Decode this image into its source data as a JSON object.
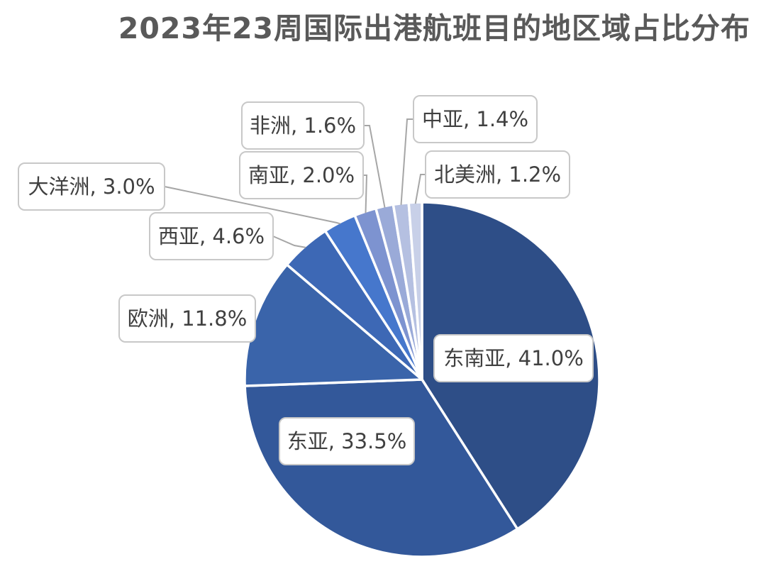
{
  "chart_data": {
    "type": "pie",
    "title": "2023年23周国际出港航班目的地区域占比分布",
    "categories": [
      "东南亚",
      "东亚",
      "欧洲",
      "西亚",
      "大洋洲",
      "南亚",
      "非洲",
      "中亚",
      "北美洲"
    ],
    "values": [
      41.0,
      33.5,
      11.8,
      4.6,
      3.0,
      2.0,
      1.6,
      1.4,
      1.2
    ],
    "labels": [
      "东南亚, 41.0%",
      "东亚, 33.5%",
      "欧洲, 11.8%",
      "西亚, 4.6%",
      "大洋洲, 3.0%",
      "南亚, 2.0%",
      "非洲, 1.6%",
      "中亚, 1.4%",
      "北美洲, 1.2%"
    ],
    "unit": "%",
    "start_angle": "12 o'clock",
    "direction": "clockwise",
    "colors": [
      "#2e4e87",
      "#33589a",
      "#3a64aa",
      "#3d68b5",
      "#4677cc",
      "#7d93d0",
      "#9aaad8",
      "#b5c0e1",
      "#c8d0e8"
    ],
    "legend": "none (category labels in callouts)"
  }
}
